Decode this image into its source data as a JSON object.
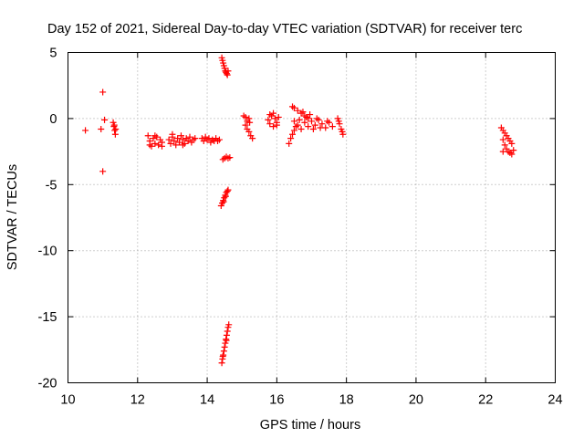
{
  "chart_data": {
    "type": "scatter",
    "title": "Day 152 of 2021, Sidereal Day-to-day VTEC variation (SDTVAR) for receiver terc",
    "xlabel": "GPS time / hours",
    "ylabel": "SDTVAR / TECUs",
    "xlim": [
      10,
      24
    ],
    "ylim": [
      -20,
      5
    ],
    "xticks": [
      10,
      12,
      14,
      16,
      18,
      20,
      22,
      24
    ],
    "yticks": [
      5,
      0,
      -5,
      -10,
      -15,
      -20
    ],
    "xtick_labels": [
      "10",
      "12",
      "14",
      "16",
      "18",
      "20",
      "22",
      "24"
    ],
    "ytick_labels": [
      "5",
      "0",
      "-5",
      "-10",
      "-15",
      "-20"
    ],
    "grid": true,
    "marker": "plus",
    "color": "#ff0000",
    "series": [
      {
        "name": "SDTVAR",
        "points": [
          [
            10.5,
            -0.9
          ],
          [
            10.95,
            -0.8
          ],
          [
            11.0,
            2.0
          ],
          [
            11.05,
            -0.1
          ],
          [
            11.0,
            -4.0
          ],
          [
            11.3,
            -0.3
          ],
          [
            11.32,
            -0.6
          ],
          [
            11.34,
            -0.9
          ],
          [
            11.36,
            -1.2
          ],
          [
            11.33,
            -0.5
          ],
          [
            11.37,
            -0.8
          ],
          [
            12.3,
            -1.3
          ],
          [
            12.35,
            -1.7
          ],
          [
            12.4,
            -2.1
          ],
          [
            12.45,
            -1.5
          ],
          [
            12.5,
            -1.9
          ],
          [
            12.55,
            -1.4
          ],
          [
            12.6,
            -2.0
          ],
          [
            12.65,
            -1.6
          ],
          [
            12.7,
            -1.8
          ],
          [
            12.35,
            -2.0
          ],
          [
            12.5,
            -1.3
          ],
          [
            12.7,
            -2.1
          ],
          [
            12.9,
            -1.6
          ],
          [
            12.95,
            -1.9
          ],
          [
            13.0,
            -1.4
          ],
          [
            13.05,
            -1.7
          ],
          [
            13.1,
            -2.0
          ],
          [
            13.15,
            -1.5
          ],
          [
            13.2,
            -1.8
          ],
          [
            13.25,
            -1.3
          ],
          [
            13.3,
            -1.6
          ],
          [
            13.35,
            -1.9
          ],
          [
            13.4,
            -1.5
          ],
          [
            13.45,
            -1.7
          ],
          [
            13.5,
            -1.4
          ],
          [
            13.55,
            -1.8
          ],
          [
            13.6,
            -1.6
          ],
          [
            13.65,
            -1.5
          ],
          [
            13.0,
            -1.2
          ],
          [
            13.3,
            -2.0
          ],
          [
            13.85,
            -1.5
          ],
          [
            13.9,
            -1.7
          ],
          [
            13.95,
            -1.4
          ],
          [
            14.0,
            -1.6
          ],
          [
            14.05,
            -1.5
          ],
          [
            14.1,
            -1.8
          ],
          [
            14.15,
            -1.6
          ],
          [
            14.2,
            -1.7
          ],
          [
            14.25,
            -1.5
          ],
          [
            14.3,
            -1.7
          ],
          [
            14.35,
            -1.6
          ],
          [
            14.42,
            4.6
          ],
          [
            14.44,
            4.4
          ],
          [
            14.46,
            4.2
          ],
          [
            14.48,
            4.0
          ],
          [
            14.5,
            3.8
          ],
          [
            14.52,
            3.6
          ],
          [
            14.54,
            3.5
          ],
          [
            14.56,
            3.4
          ],
          [
            14.58,
            3.3
          ],
          [
            14.6,
            3.6
          ],
          [
            14.45,
            -3.1
          ],
          [
            14.5,
            -3.0
          ],
          [
            14.55,
            -2.9
          ],
          [
            14.6,
            -3.0
          ],
          [
            14.65,
            -2.95
          ],
          [
            14.4,
            -6.6
          ],
          [
            14.43,
            -6.4
          ],
          [
            14.46,
            -6.2
          ],
          [
            14.49,
            -6.0
          ],
          [
            14.52,
            -5.8
          ],
          [
            14.55,
            -5.6
          ],
          [
            14.58,
            -5.5
          ],
          [
            14.6,
            -5.4
          ],
          [
            14.47,
            -6.3
          ],
          [
            14.53,
            -5.9
          ],
          [
            14.42,
            -18.5
          ],
          [
            14.44,
            -18.2
          ],
          [
            14.46,
            -17.9
          ],
          [
            14.48,
            -17.6
          ],
          [
            14.5,
            -17.3
          ],
          [
            14.52,
            -17.0
          ],
          [
            14.54,
            -16.7
          ],
          [
            14.56,
            -16.4
          ],
          [
            14.58,
            -16.1
          ],
          [
            14.6,
            -15.8
          ],
          [
            14.62,
            -15.6
          ],
          [
            14.45,
            -18.0
          ],
          [
            14.55,
            -16.8
          ],
          [
            15.1,
            0.1
          ],
          [
            15.15,
            -0.2
          ],
          [
            15.2,
            0.0
          ],
          [
            15.05,
            0.2
          ],
          [
            15.1,
            -0.5
          ],
          [
            15.15,
            -0.8
          ],
          [
            15.2,
            -1.0
          ],
          [
            15.25,
            -1.3
          ],
          [
            15.3,
            -1.5
          ],
          [
            15.22,
            -0.3
          ],
          [
            15.75,
            -0.1
          ],
          [
            15.8,
            -0.4
          ],
          [
            15.85,
            0.2
          ],
          [
            15.9,
            -0.6
          ],
          [
            15.95,
            0.0
          ],
          [
            16.0,
            -0.3
          ],
          [
            16.05,
            0.1
          ],
          [
            15.8,
            0.3
          ],
          [
            15.9,
            0.4
          ],
          [
            16.0,
            -0.5
          ],
          [
            16.35,
            -1.9
          ],
          [
            16.4,
            -1.5
          ],
          [
            16.45,
            -1.2
          ],
          [
            16.5,
            -0.9
          ],
          [
            16.55,
            -0.6
          ],
          [
            16.45,
            0.9
          ],
          [
            16.5,
            0.8
          ],
          [
            16.6,
            0.6
          ],
          [
            16.7,
            0.4
          ],
          [
            16.8,
            0.2
          ],
          [
            16.9,
            0.0
          ],
          [
            16.5,
            -0.2
          ],
          [
            16.6,
            -0.5
          ],
          [
            16.7,
            -0.8
          ],
          [
            16.8,
            -0.3
          ],
          [
            16.9,
            -0.6
          ],
          [
            17.0,
            -0.2
          ],
          [
            17.1,
            -0.5
          ],
          [
            17.2,
            -0.1
          ],
          [
            17.3,
            -0.4
          ],
          [
            17.4,
            -0.7
          ],
          [
            17.5,
            -0.3
          ],
          [
            17.6,
            -0.6
          ],
          [
            16.75,
            0.5
          ],
          [
            16.85,
            0.1
          ],
          [
            17.05,
            -0.8
          ],
          [
            17.25,
            -0.7
          ],
          [
            17.45,
            -0.2
          ],
          [
            17.15,
            0.0
          ],
          [
            16.65,
            -0.1
          ],
          [
            16.95,
            0.3
          ],
          [
            17.75,
            0.0
          ],
          [
            17.8,
            -0.4
          ],
          [
            17.85,
            -0.8
          ],
          [
            17.9,
            -1.2
          ],
          [
            17.78,
            -0.2
          ],
          [
            17.88,
            -1.0
          ],
          [
            22.45,
            -0.7
          ],
          [
            22.5,
            -0.9
          ],
          [
            22.55,
            -1.1
          ],
          [
            22.6,
            -1.3
          ],
          [
            22.65,
            -1.5
          ],
          [
            22.7,
            -1.7
          ],
          [
            22.75,
            -1.9
          ],
          [
            22.5,
            -1.6
          ],
          [
            22.55,
            -2.0
          ],
          [
            22.6,
            -2.3
          ],
          [
            22.65,
            -2.5
          ],
          [
            22.7,
            -2.6
          ],
          [
            22.75,
            -2.7
          ],
          [
            22.5,
            -2.5
          ],
          [
            22.8,
            -2.4
          ]
        ]
      }
    ]
  }
}
